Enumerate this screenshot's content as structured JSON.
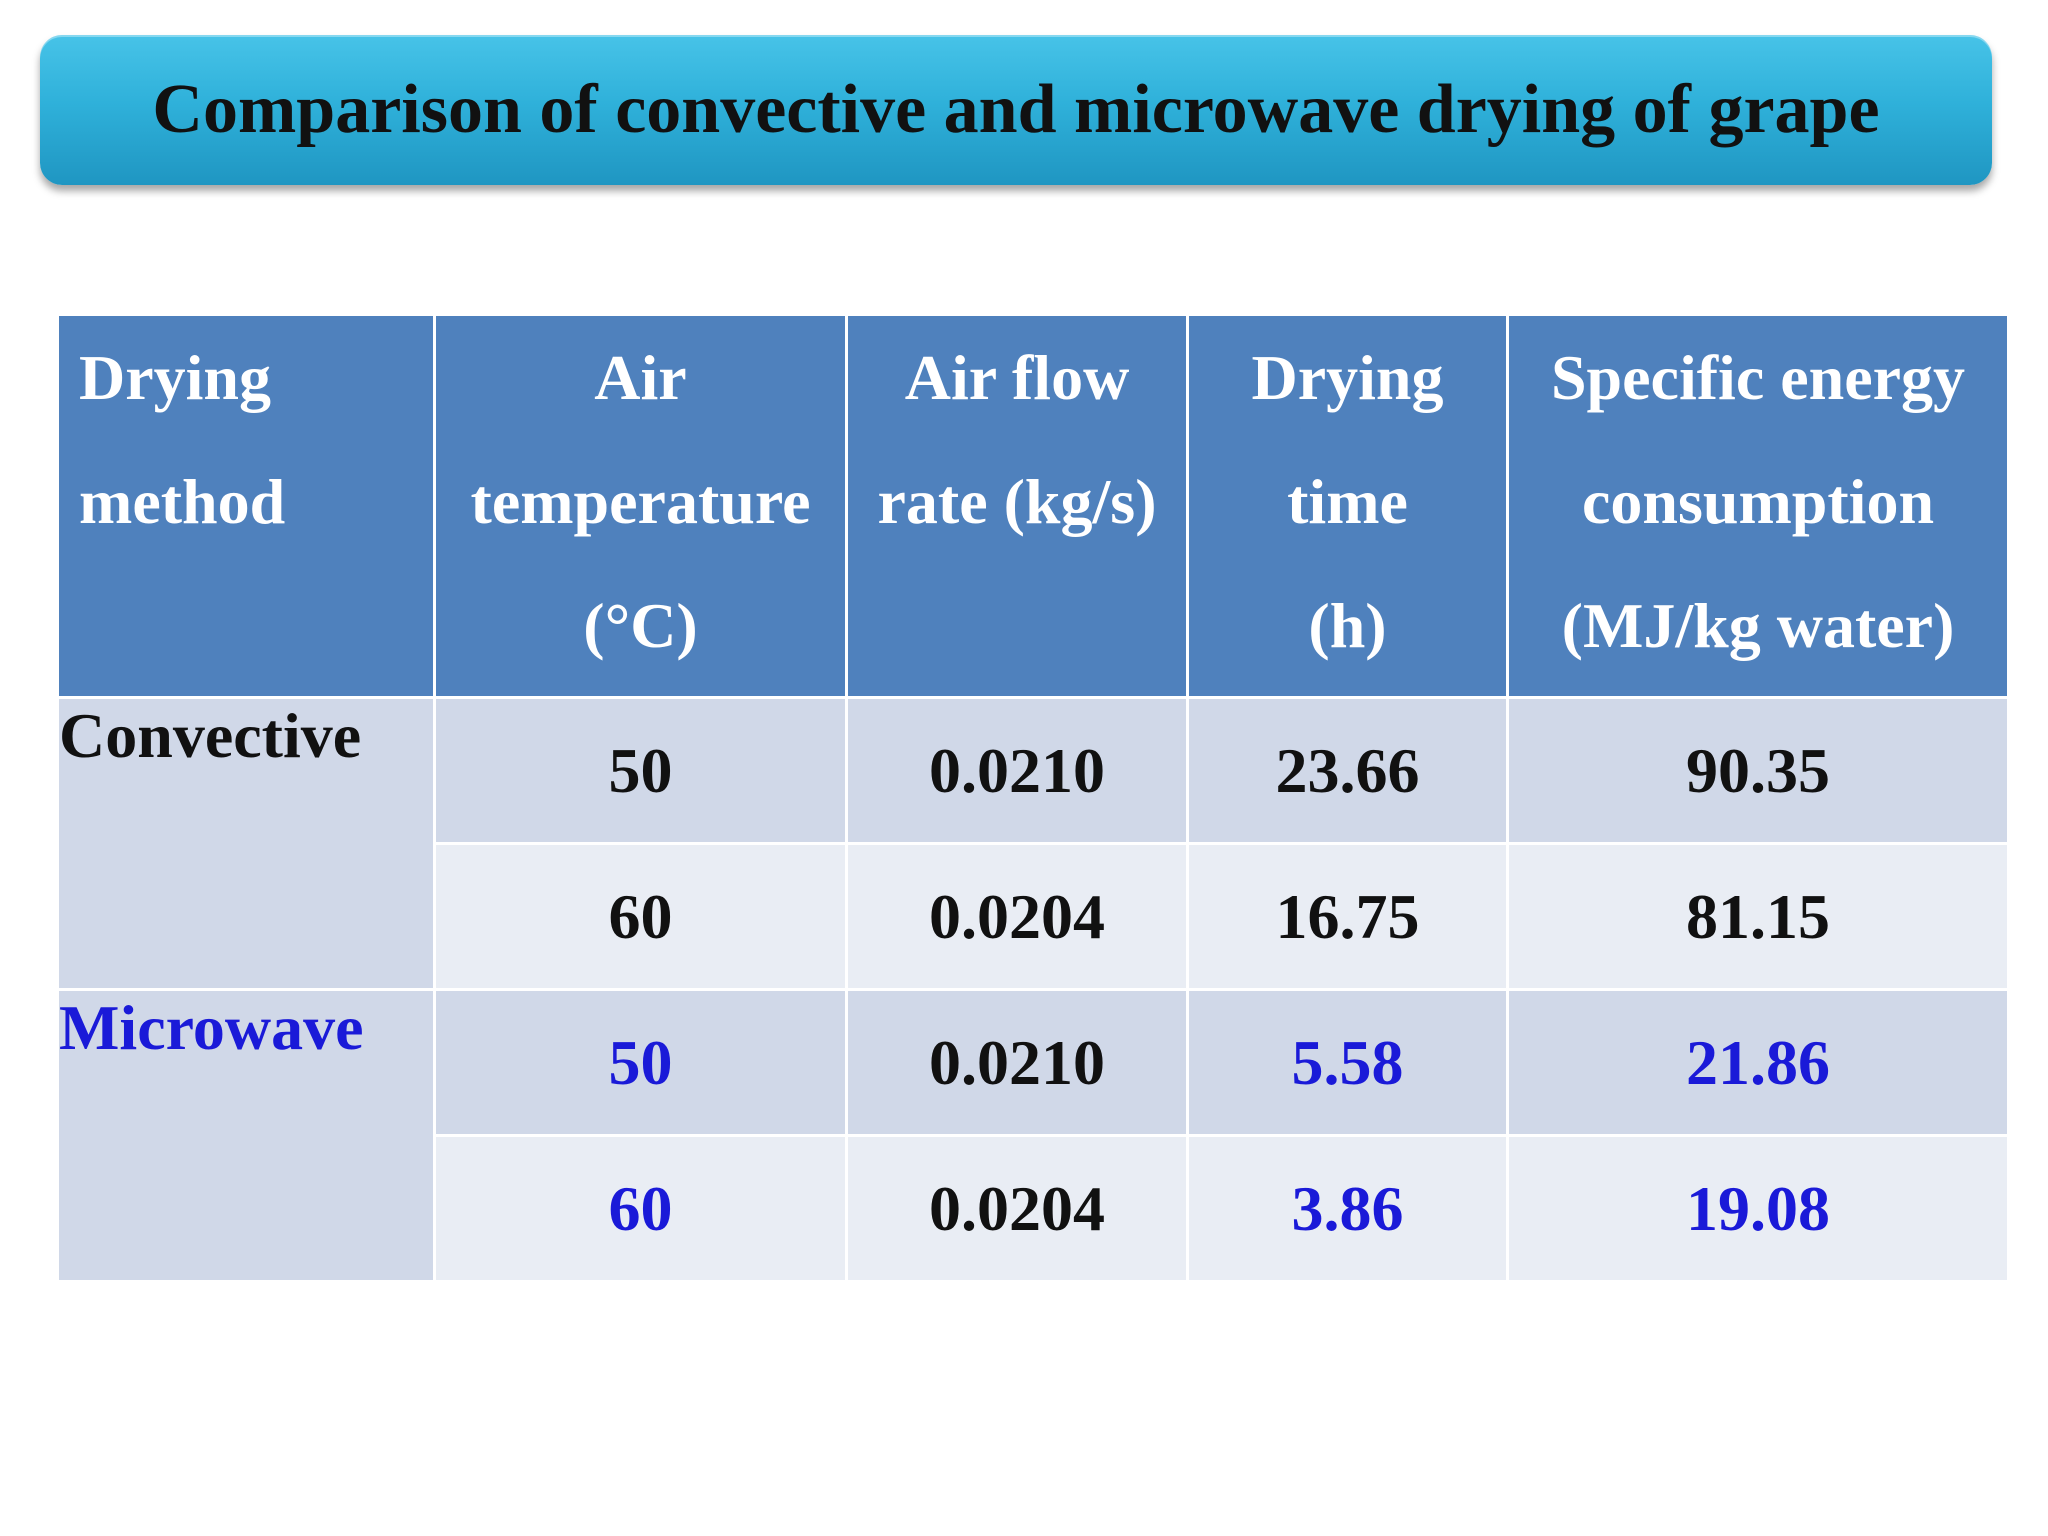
{
  "title": "Comparison of convective and microwave drying of grape",
  "colors": {
    "title_bar": "#2fb1da",
    "header_bg": "#4f81bd",
    "row_odd_bg": "#d0d8e8",
    "row_even_bg": "#e9edf4",
    "highlight_text": "#1a1ad8"
  },
  "table": {
    "headers": [
      {
        "lines": [
          "Drying",
          "method"
        ]
      },
      {
        "lines": [
          "Air",
          "temperature",
          "(°C)"
        ]
      },
      {
        "lines": [
          "Air flow",
          "rate (kg/s)"
        ]
      },
      {
        "lines": [
          "Drying",
          "time",
          "(h)"
        ]
      },
      {
        "lines": [
          "Specific energy",
          "consumption",
          "(MJ/kg water)"
        ]
      }
    ],
    "groups": [
      {
        "method": "Convective",
        "rows": [
          {
            "temperature": "50",
            "air_flow": "0.0210",
            "time": "23.66",
            "energy": "90.35"
          },
          {
            "temperature": "60",
            "air_flow": "0.0204",
            "time": "16.75",
            "energy": "81.15"
          }
        ]
      },
      {
        "method": "Microwave",
        "rows": [
          {
            "temperature": "50",
            "air_flow": "0.0210",
            "time": "5.58",
            "energy": "21.86"
          },
          {
            "temperature": "60",
            "air_flow": "0.0204",
            "time": "3.86",
            "energy": "19.08"
          }
        ]
      }
    ]
  }
}
